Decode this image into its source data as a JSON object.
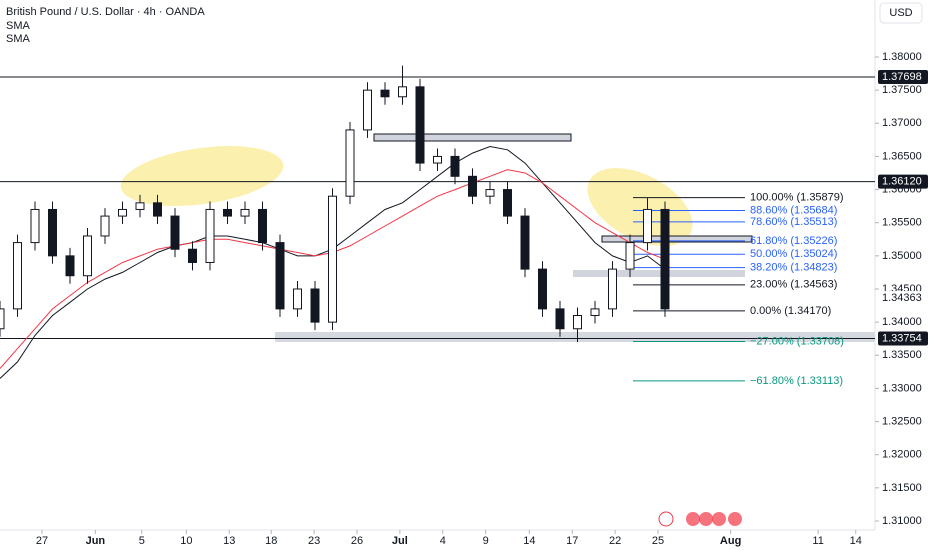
{
  "chart_data": {
    "type": "candlestick",
    "title": "British Pound / U.S. Dollar · 4h · OANDA",
    "indicators": [
      "SMA",
      "SMA"
    ],
    "currency": "USD",
    "x": [
      0,
      2,
      4,
      6,
      8,
      10,
      12,
      14,
      16,
      18,
      20,
      22,
      24,
      26,
      28,
      30,
      32,
      34,
      36,
      38,
      40,
      42,
      44,
      46,
      48,
      50,
      52,
      54,
      56,
      58,
      60,
      62,
      64,
      66,
      68,
      70,
      72,
      74,
      76
    ],
    "open": [
      1.339,
      1.342,
      1.352,
      1.357,
      1.35,
      1.347,
      1.353,
      1.356,
      1.357,
      1.358,
      1.356,
      1.351,
      1.349,
      1.357,
      1.356,
      1.357,
      1.352,
      1.342,
      1.345,
      1.34,
      1.359,
      1.369,
      1.375,
      1.374,
      1.3755,
      1.364,
      1.365,
      1.362,
      1.359,
      1.36,
      1.356,
      1.348,
      1.342,
      1.339,
      1.341,
      1.342,
      1.348,
      1.352,
      1.357
    ],
    "high": [
      1.3432,
      1.3532,
      1.3582,
      1.3582,
      1.3512,
      1.3542,
      1.3572,
      1.3582,
      1.3592,
      1.3592,
      1.3572,
      1.3522,
      1.3582,
      1.3582,
      1.3582,
      1.3582,
      1.3532,
      1.3462,
      1.3462,
      1.3602,
      1.3702,
      1.3762,
      1.3762,
      1.3787,
      1.3767,
      1.3662,
      1.3662,
      1.3632,
      1.3612,
      1.3612,
      1.3572,
      1.3492,
      1.3432,
      1.3422,
      1.3432,
      1.3492,
      1.3532,
      1.3587,
      1.3582
    ],
    "low": [
      1.3378,
      1.3408,
      1.3508,
      1.3488,
      1.3458,
      1.3458,
      1.3518,
      1.3548,
      1.3558,
      1.3548,
      1.3498,
      1.3478,
      1.3478,
      1.3548,
      1.3548,
      1.3508,
      1.3408,
      1.3408,
      1.3388,
      1.3388,
      1.3578,
      1.3678,
      1.3728,
      1.3728,
      1.3628,
      1.3628,
      1.3608,
      1.3578,
      1.3578,
      1.3548,
      1.3468,
      1.3408,
      1.3378,
      1.337,
      1.3398,
      1.3408,
      1.3468,
      1.3508,
      1.3408
    ],
    "close": [
      1.342,
      1.352,
      1.357,
      1.35,
      1.347,
      1.353,
      1.356,
      1.357,
      1.358,
      1.356,
      1.351,
      1.349,
      1.357,
      1.356,
      1.357,
      1.352,
      1.342,
      1.345,
      1.34,
      1.359,
      1.369,
      1.375,
      1.374,
      1.3755,
      1.364,
      1.365,
      1.362,
      1.359,
      1.36,
      1.356,
      1.348,
      1.342,
      1.339,
      1.341,
      1.342,
      1.348,
      1.352,
      1.357,
      1.342
    ],
    "series": [
      {
        "color": "#131722",
        "values": [
          1.3315,
          1.334,
          1.338,
          1.341,
          1.343,
          1.345,
          1.3465,
          1.3475,
          1.349,
          1.3505,
          1.3515,
          1.352,
          1.353,
          1.353,
          1.3525,
          1.352,
          1.351,
          1.35,
          1.35,
          1.351,
          1.353,
          1.355,
          1.357,
          1.358,
          1.36,
          1.362,
          1.364,
          1.3655,
          1.3665,
          1.366,
          1.364,
          1.361,
          1.358,
          1.355,
          1.352,
          1.35,
          1.349,
          1.35,
          1.348
        ]
      },
      {
        "color": "#f23645",
        "values": [
          1.333,
          1.336,
          1.339,
          1.342,
          1.344,
          1.346,
          1.3475,
          1.349,
          1.35,
          1.351,
          1.3515,
          1.352,
          1.3525,
          1.3525,
          1.352,
          1.3515,
          1.351,
          1.3505,
          1.35,
          1.3505,
          1.3515,
          1.353,
          1.3545,
          1.356,
          1.3575,
          1.359,
          1.36,
          1.361,
          1.362,
          1.363,
          1.3625,
          1.361,
          1.359,
          1.357,
          1.355,
          1.3535,
          1.352,
          1.3505,
          1.3495
        ]
      }
    ],
    "xlim": [
      0,
      100
    ],
    "xticks": [
      {
        "value": 4.8,
        "label": "27"
      },
      {
        "value": 10.9,
        "label": "Jun"
      },
      {
        "value": 16.2,
        "label": "5"
      },
      {
        "value": 21.3,
        "label": "10"
      },
      {
        "value": 26.2,
        "label": "13"
      },
      {
        "value": 31,
        "label": "18"
      },
      {
        "value": 35.9,
        "label": "23"
      },
      {
        "value": 40.8,
        "label": "26"
      },
      {
        "value": 45.7,
        "label": "Jul"
      },
      {
        "value": 50.6,
        "label": "4"
      },
      {
        "value": 55.5,
        "label": "9"
      },
      {
        "value": 60.5,
        "label": "14"
      },
      {
        "value": 65.4,
        "label": "17"
      },
      {
        "value": 70.3,
        "label": "22"
      },
      {
        "value": 75.2,
        "label": "25"
      },
      {
        "value": 83.5,
        "label": "Aug"
      },
      {
        "value": 93.5,
        "label": "11"
      },
      {
        "value": 97.8,
        "label": "14"
      }
    ],
    "ylim": [
      1.30864,
      1.3886
    ],
    "yticks": [
      {
        "value": 1.38,
        "label": "1.38000"
      },
      {
        "value": 1.375,
        "label": "1.37500"
      },
      {
        "value": 1.37,
        "label": "1.37000"
      },
      {
        "value": 1.365,
        "label": "1.36500"
      },
      {
        "value": 1.36,
        "label": "1.36000"
      },
      {
        "value": 1.355,
        "label": "1.35500"
      },
      {
        "value": 1.35,
        "label": "1.35000"
      },
      {
        "value": 1.345,
        "label": "1.34500"
      },
      {
        "value": 1.34,
        "label": "1.34000"
      },
      {
        "value": 1.335,
        "label": "1.33500"
      },
      {
        "value": 1.33,
        "label": "1.33000"
      },
      {
        "value": 1.325,
        "label": "1.32500"
      },
      {
        "value": 1.32,
        "label": "1.32000"
      },
      {
        "value": 1.315,
        "label": "1.31500"
      },
      {
        "value": 1.31,
        "label": "1.31000"
      }
    ],
    "levels": [
      {
        "value": 1.37698,
        "label": "1.37698"
      },
      {
        "value": 1.3612,
        "label": "1.36120"
      },
      {
        "value": 1.33754,
        "label": "1.33754"
      }
    ],
    "last_price": {
      "value": 1.34363,
      "label": "1.34363"
    },
    "fib": [
      {
        "value": 1.35879,
        "label": "100.00% (1.35879)",
        "color": "#131722"
      },
      {
        "value": 1.35684,
        "label": "88.60% (1.35684)",
        "color": "#2962ff"
      },
      {
        "value": 1.35513,
        "label": "78.60% (1.35513)",
        "color": "#2962ff"
      },
      {
        "value": 1.35226,
        "label": "61.80% (1.35226)",
        "color": "#2962ff"
      },
      {
        "value": 1.35024,
        "label": "50.00% (1.35024)",
        "color": "#2962ff"
      },
      {
        "value": 1.34823,
        "label": "38.20% (1.34823)",
        "color": "#2962ff"
      },
      {
        "value": 1.34563,
        "label": "23.00% (1.34563)",
        "color": "#131722"
      },
      {
        "value": 1.3417,
        "label": "0.00% (1.34170)",
        "color": "#131722"
      },
      {
        "value": 1.33708,
        "label": "−27.00% (1.33708)",
        "color": "#089981"
      },
      {
        "value": 1.33113,
        "label": "−61.80% (1.33113)",
        "color": "#089981"
      }
    ]
  }
}
